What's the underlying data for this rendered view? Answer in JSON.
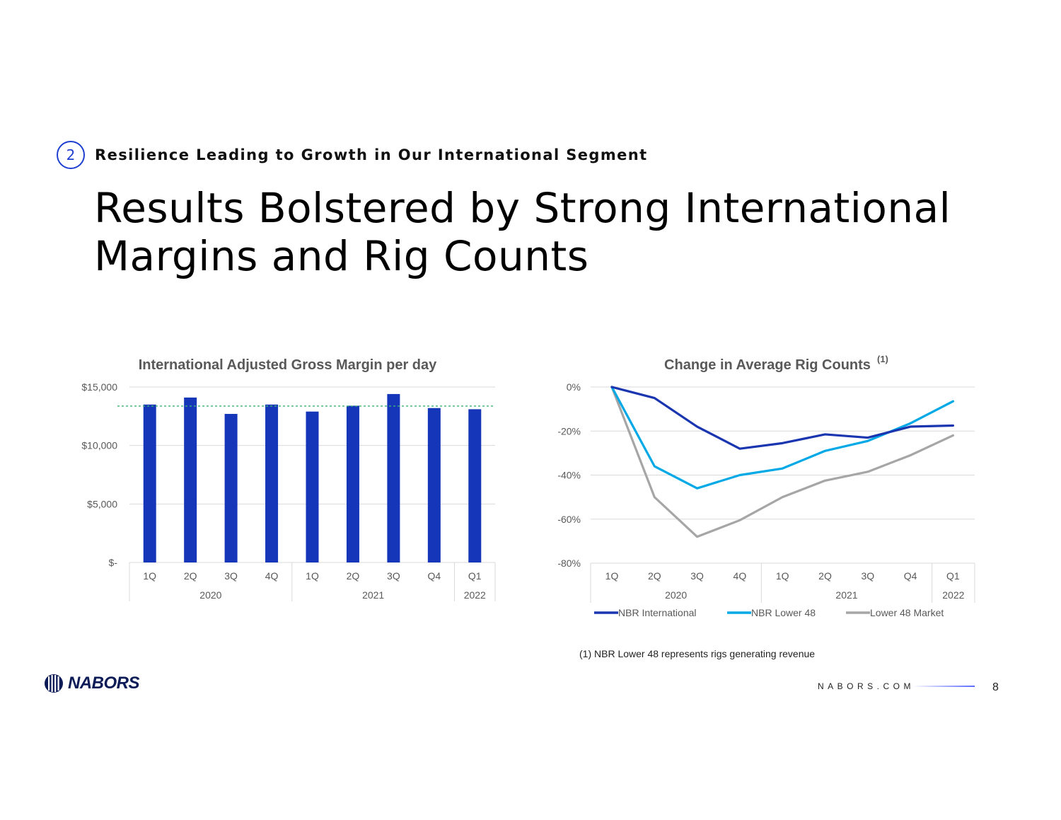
{
  "section": {
    "number": "2",
    "title": "Resilience Leading to Growth in Our International Segment"
  },
  "title": {
    "line1": "Results Bolstered by Strong International",
    "line2": "Margins and Rig Counts"
  },
  "chart_data": [
    {
      "type": "bar",
      "title": "International Adjusted Gross Margin per day",
      "categories": [
        "1Q",
        "2Q",
        "3Q",
        "4Q",
        "1Q",
        "2Q",
        "3Q",
        "Q4",
        "Q1"
      ],
      "groups": [
        {
          "label": "2020",
          "span": 4
        },
        {
          "label": "2021",
          "span": 4
        },
        {
          "label": "2022",
          "span": 1
        }
      ],
      "values": [
        13500,
        14100,
        12700,
        13500,
        12900,
        13400,
        14400,
        13200,
        13100
      ],
      "average_line": 13370,
      "ylim": [
        0,
        15000
      ],
      "yticks": [
        0,
        5000,
        10000,
        15000
      ],
      "ytick_labels": [
        "$-",
        "$5,000",
        "$10,000",
        "$15,000"
      ],
      "bar_color": "#1536b8",
      "average_line_color": "#3cb371"
    },
    {
      "type": "line",
      "title": "Change in Average Rig Counts",
      "title_superscript": "(1)",
      "categories": [
        "1Q",
        "2Q",
        "3Q",
        "4Q",
        "1Q",
        "2Q",
        "3Q",
        "Q4",
        "Q1"
      ],
      "groups": [
        {
          "label": "2020",
          "span": 4
        },
        {
          "label": "2021",
          "span": 4
        },
        {
          "label": "2022",
          "span": 1
        }
      ],
      "ylim": [
        -80,
        0
      ],
      "yticks": [
        0,
        -20,
        -40,
        -60,
        -80
      ],
      "ytick_labels": [
        "0%",
        "-20%",
        "-40%",
        "-60%",
        "-80%"
      ],
      "legend_position": "bottom",
      "series": [
        {
          "name": "NBR International",
          "color": "#1a35b0",
          "values": [
            0,
            -5,
            -18,
            -28,
            -25.5,
            -21.5,
            -23,
            -18,
            -17.5
          ]
        },
        {
          "name": "NBR Lower 48",
          "color": "#00a9e6",
          "values": [
            0,
            -36,
            -46,
            -40,
            -37,
            -29,
            -24.5,
            -16.5,
            -6.5
          ]
        },
        {
          "name": "Lower 48 Market",
          "color": "#a6a6a6",
          "values": [
            0,
            -50,
            -68,
            -60.5,
            -50,
            -42.5,
            -38.5,
            -31,
            -22
          ]
        }
      ]
    }
  ],
  "footnote": "(1) NBR Lower 48 represents rigs generating revenue",
  "footer": {
    "logo_text": "NABORS",
    "website": "NABORS.COM",
    "page": "8"
  }
}
